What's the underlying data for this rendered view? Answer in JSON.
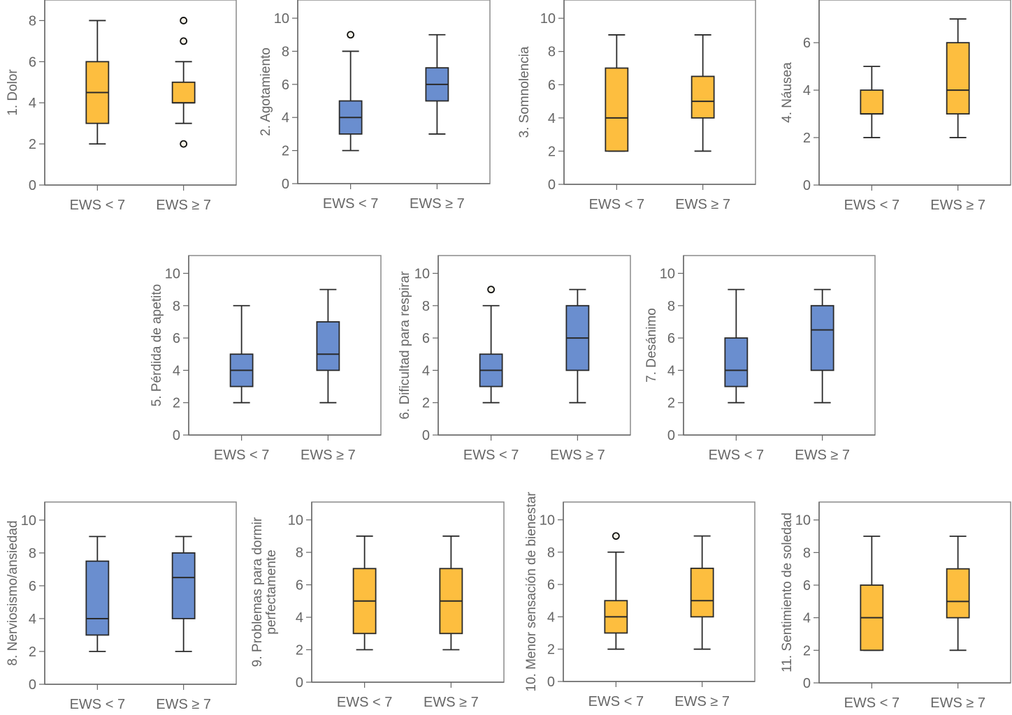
{
  "colors": {
    "orange_fill": "#FDBE3F",
    "blue_fill": "#6A8ECF",
    "box_stroke": "#2a2a2a",
    "outlier_fill": "#f4f1e6",
    "axis": "#666666",
    "frame": "#8a8a8a",
    "text": "#666666"
  },
  "chart_data": [
    {
      "type": "box",
      "ylabel": [
        "1. Dolor"
      ],
      "categories": [
        "EWS < 7",
        "EWS ≥ 7"
      ],
      "yticks": [
        0,
        2,
        4,
        6,
        8
      ],
      "ylim": [
        0,
        9
      ],
      "fill": "orange",
      "boxes": [
        {
          "whisker_low": 2,
          "q1": 3,
          "median": 4.5,
          "q3": 6,
          "whisker_high": 8,
          "outliers": []
        },
        {
          "whisker_low": 3,
          "q1": 4,
          "median": 4,
          "q3": 5,
          "whisker_high": 6,
          "outliers": [
            2,
            7,
            8
          ]
        }
      ]
    },
    {
      "type": "box",
      "ylabel": [
        "2. Agotamiento"
      ],
      "categories": [
        "EWS < 7",
        "EWS ≥ 7"
      ],
      "yticks": [
        0,
        2,
        4,
        6,
        8,
        10
      ],
      "ylim": [
        0,
        11.1
      ],
      "fill": "blue",
      "boxes": [
        {
          "whisker_low": 2,
          "q1": 3,
          "median": 4,
          "q3": 5,
          "whisker_high": 8,
          "outliers": [
            9
          ]
        },
        {
          "whisker_low": 3,
          "q1": 5,
          "median": 6,
          "q3": 7,
          "whisker_high": 9,
          "outliers": []
        }
      ]
    },
    {
      "type": "box",
      "ylabel": [
        "3. Somnolencia"
      ],
      "categories": [
        "EWS < 7",
        "EWS ≥ 7"
      ],
      "yticks": [
        0,
        2,
        4,
        6,
        8,
        10
      ],
      "ylim": [
        0,
        11.1
      ],
      "fill": "orange",
      "boxes": [
        {
          "whisker_low": 2,
          "q1": 2,
          "median": 4,
          "q3": 7,
          "whisker_high": 9,
          "outliers": []
        },
        {
          "whisker_low": 2,
          "q1": 4,
          "median": 5,
          "q3": 6.5,
          "whisker_high": 9,
          "outliers": []
        }
      ]
    },
    {
      "type": "box",
      "ylabel": [
        "4. Náusea"
      ],
      "categories": [
        "EWS < 7",
        "EWS ≥ 7"
      ],
      "yticks": [
        0,
        2,
        4,
        6
      ],
      "ylim": [
        0,
        7.8
      ],
      "fill": "orange",
      "boxes": [
        {
          "whisker_low": 2,
          "q1": 3,
          "median": 3,
          "q3": 4,
          "whisker_high": 5,
          "outliers": []
        },
        {
          "whisker_low": 2,
          "q1": 3,
          "median": 4,
          "q3": 6,
          "whisker_high": 7,
          "outliers": []
        }
      ]
    },
    {
      "type": "box",
      "ylabel": [
        "5. Pérdida de apetito"
      ],
      "categories": [
        "EWS < 7",
        "EWS ≥ 7"
      ],
      "yticks": [
        0,
        2,
        4,
        6,
        8,
        10
      ],
      "ylim": [
        0,
        11.1
      ],
      "fill": "blue",
      "boxes": [
        {
          "whisker_low": 2,
          "q1": 3,
          "median": 4,
          "q3": 5,
          "whisker_high": 8,
          "outliers": []
        },
        {
          "whisker_low": 2,
          "q1": 4,
          "median": 5,
          "q3": 7,
          "whisker_high": 9,
          "outliers": []
        }
      ]
    },
    {
      "type": "box",
      "ylabel": [
        "6. Dificultad para respirar"
      ],
      "categories": [
        "EWS < 7",
        "EWS ≥ 7"
      ],
      "yticks": [
        0,
        2,
        4,
        6,
        8,
        10
      ],
      "ylim": [
        0,
        11.1
      ],
      "fill": "blue",
      "boxes": [
        {
          "whisker_low": 2,
          "q1": 3,
          "median": 4,
          "q3": 5,
          "whisker_high": 8,
          "outliers": [
            9
          ]
        },
        {
          "whisker_low": 2,
          "q1": 4,
          "median": 6,
          "q3": 8,
          "whisker_high": 9,
          "outliers": []
        }
      ]
    },
    {
      "type": "box",
      "ylabel": [
        "7. Desánimo"
      ],
      "categories": [
        "EWS < 7",
        "EWS ≥ 7"
      ],
      "yticks": [
        0,
        2,
        4,
        6,
        8,
        10
      ],
      "ylim": [
        0,
        11.1
      ],
      "fill": "blue",
      "boxes": [
        {
          "whisker_low": 2,
          "q1": 3,
          "median": 4,
          "q3": 6,
          "whisker_high": 9,
          "outliers": []
        },
        {
          "whisker_low": 2,
          "q1": 4,
          "median": 6.5,
          "q3": 8,
          "whisker_high": 9,
          "outliers": []
        }
      ]
    },
    {
      "type": "box",
      "ylabel": [
        "8. Nerviosismo/ansiedad"
      ],
      "categories": [
        "EWS < 7",
        "EWS ≥ 7"
      ],
      "yticks": [
        0,
        2,
        4,
        6,
        8,
        10
      ],
      "ylim": [
        0,
        11.1
      ],
      "fill": "blue",
      "boxes": [
        {
          "whisker_low": 2,
          "q1": 3,
          "median": 4,
          "q3": 7.5,
          "whisker_high": 9,
          "outliers": []
        },
        {
          "whisker_low": 2,
          "q1": 4,
          "median": 6.5,
          "q3": 8,
          "whisker_high": 9,
          "outliers": []
        }
      ]
    },
    {
      "type": "box",
      "ylabel": [
        "9. Problemas para dormir",
        "perfectamente"
      ],
      "categories": [
        "EWS < 7",
        "EWS ≥ 7"
      ],
      "yticks": [
        0,
        2,
        4,
        6,
        8,
        10
      ],
      "ylim": [
        0,
        11.1
      ],
      "fill": "orange",
      "boxes": [
        {
          "whisker_low": 2,
          "q1": 3,
          "median": 5,
          "q3": 7,
          "whisker_high": 9,
          "outliers": []
        },
        {
          "whisker_low": 2,
          "q1": 3,
          "median": 5,
          "q3": 7,
          "whisker_high": 9,
          "outliers": []
        }
      ]
    },
    {
      "type": "box",
      "ylabel": [
        "10. Menor sensación de bienestar"
      ],
      "categories": [
        "EWS < 7",
        "EWS ≥ 7"
      ],
      "yticks": [
        0,
        2,
        4,
        6,
        8,
        10
      ],
      "ylim": [
        0,
        11.1
      ],
      "fill": "orange",
      "boxes": [
        {
          "whisker_low": 2,
          "q1": 3,
          "median": 4,
          "q3": 5,
          "whisker_high": 8,
          "outliers": [
            9
          ]
        },
        {
          "whisker_low": 2,
          "q1": 4,
          "median": 5,
          "q3": 7,
          "whisker_high": 9,
          "outliers": []
        }
      ]
    },
    {
      "type": "box",
      "ylabel": [
        "11. Sentimiento de soledad"
      ],
      "categories": [
        "EWS < 7",
        "EWS ≥ 7"
      ],
      "yticks": [
        0,
        2,
        4,
        6,
        8,
        10
      ],
      "ylim": [
        0,
        11.1
      ],
      "fill": "orange",
      "boxes": [
        {
          "whisker_low": 2,
          "q1": 2,
          "median": 4,
          "q3": 6,
          "whisker_high": 9,
          "outliers": []
        },
        {
          "whisker_low": 2,
          "q1": 4,
          "median": 5,
          "q3": 7,
          "whisker_high": 9,
          "outliers": []
        }
      ]
    }
  ]
}
